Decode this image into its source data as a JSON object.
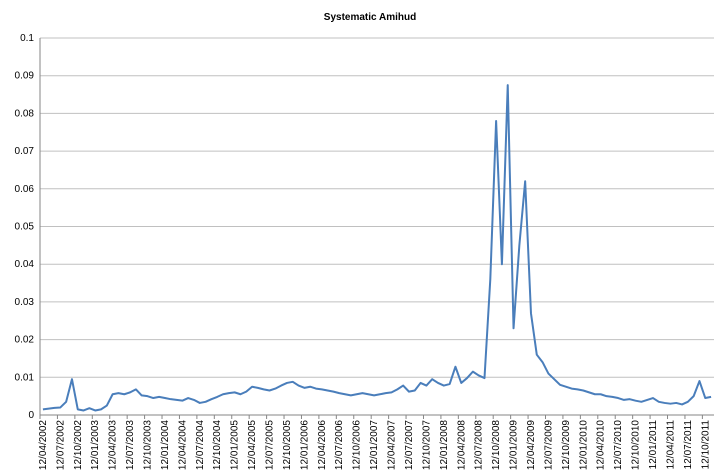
{
  "chart_data": {
    "type": "line",
    "title": "Systematic Amihud",
    "categories": [
      "12/04/2002",
      null,
      null,
      "12/07/2002",
      null,
      null,
      "12/10/2002",
      null,
      null,
      "12/01/2003",
      null,
      null,
      "12/04/2003",
      null,
      null,
      "12/07/2003",
      null,
      null,
      "12/10/2003",
      null,
      null,
      "12/01/2004",
      null,
      null,
      "12/04/2004",
      null,
      null,
      "12/07/2004",
      null,
      null,
      "12/10/2004",
      null,
      null,
      "12/01/2005",
      null,
      null,
      "12/04/2005",
      null,
      null,
      "12/07/2005",
      null,
      null,
      "12/10/2005",
      null,
      null,
      "12/01/2006",
      null,
      null,
      "12/04/2006",
      null,
      null,
      "12/07/2006",
      null,
      null,
      "12/10/2006",
      null,
      null,
      "12/01/2007",
      null,
      null,
      "12/04/2007",
      null,
      null,
      "12/07/2007",
      null,
      null,
      "12/10/2007",
      null,
      null,
      "12/01/2008",
      null,
      null,
      "12/04/2008",
      null,
      null,
      "12/07/2008",
      null,
      null,
      "12/10/2008",
      null,
      null,
      "12/01/2009",
      null,
      null,
      "12/04/2009",
      null,
      null,
      "12/07/2009",
      null,
      null,
      "12/10/2009",
      null,
      null,
      "12/01/2010",
      null,
      null,
      "12/04/2010",
      null,
      null,
      "12/07/2010",
      null,
      null,
      "12/10/2010",
      null,
      null,
      "12/01/2011",
      null,
      null,
      "12/04/2011",
      null,
      null,
      "12/07/2011",
      null,
      null,
      "12/10/2011",
      null
    ],
    "values": [
      0.0015,
      0.0017,
      0.0019,
      0.002,
      0.0035,
      0.0095,
      0.0015,
      0.0012,
      0.0018,
      0.0012,
      0.0015,
      0.0025,
      0.0055,
      0.0058,
      0.0055,
      0.006,
      0.0068,
      0.0052,
      0.005,
      0.0045,
      0.0048,
      0.0045,
      0.0042,
      0.004,
      0.0038,
      0.0045,
      0.004,
      0.0032,
      0.0035,
      0.0042,
      0.0048,
      0.0055,
      0.0058,
      0.006,
      0.0055,
      0.0062,
      0.0075,
      0.0072,
      0.0068,
      0.0065,
      0.007,
      0.0078,
      0.0085,
      0.0088,
      0.0078,
      0.0072,
      0.0075,
      0.007,
      0.0068,
      0.0065,
      0.0062,
      0.0058,
      0.0055,
      0.0052,
      0.0055,
      0.0058,
      0.0055,
      0.0052,
      0.0055,
      0.0058,
      0.006,
      0.0068,
      0.0078,
      0.0062,
      0.0065,
      0.0085,
      0.0078,
      0.0095,
      0.0085,
      0.0078,
      0.0082,
      0.0128,
      0.0085,
      0.0098,
      0.0115,
      0.0105,
      0.0098,
      0.036,
      0.078,
      0.04,
      0.0875,
      0.023,
      0.045,
      0.062,
      0.027,
      0.016,
      0.014,
      0.011,
      0.0095,
      0.008,
      0.0075,
      0.007,
      0.0068,
      0.0065,
      0.006,
      0.0055,
      0.0055,
      0.005,
      0.0048,
      0.0045,
      0.004,
      0.0042,
      0.0038,
      0.0035,
      0.004,
      0.0045,
      0.0035,
      0.0032,
      0.003,
      0.0032,
      0.0028,
      0.0035,
      0.005,
      0.009,
      0.0045,
      0.0048
    ],
    "color": "#4a7ebb",
    "ylim": [
      0,
      0.1
    ],
    "yticks": [
      0,
      0.01,
      0.02,
      0.03,
      0.04,
      0.05,
      0.06,
      0.07,
      0.08,
      0.09,
      0.1
    ],
    "grid": true
  }
}
